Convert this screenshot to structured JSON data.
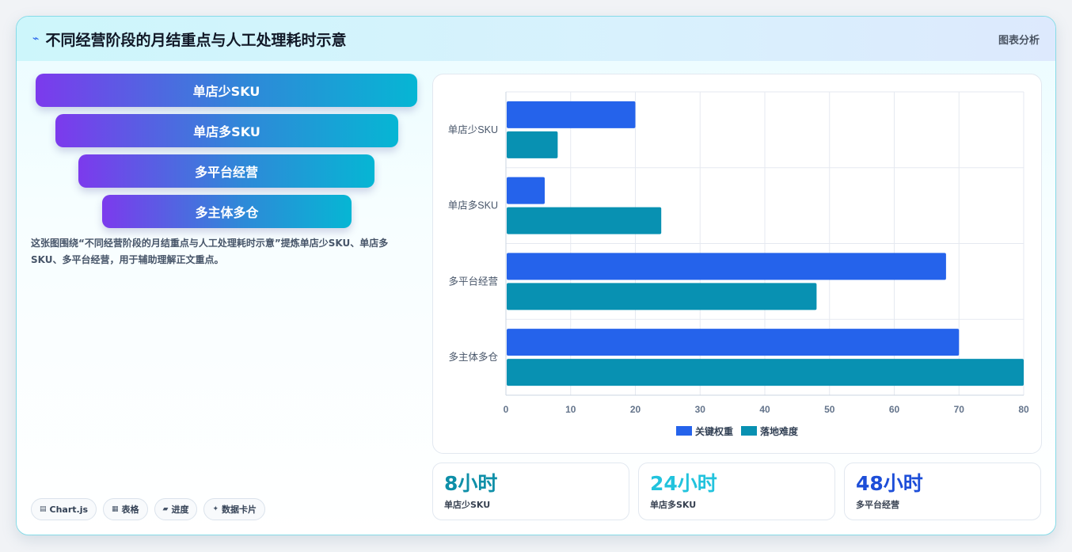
{
  "header": {
    "icon": "chart-line-icon",
    "title": "不同经营阶段的月结重点与人工处理耗时示意",
    "tag": "图表分析"
  },
  "funnel": {
    "steps": [
      {
        "label": "单店少SKU"
      },
      {
        "label": "单店多SKU"
      },
      {
        "label": "多平台经营"
      },
      {
        "label": "多主体多仓"
      }
    ]
  },
  "description": "这张图围绕“不同经营阶段的月结重点与人工处理耗时示意”提炼单店少SKU、单店多SKU、多平台经营，用于辅助理解正文重点。",
  "tags": [
    {
      "icon": "table-icon",
      "label": "Chart.js"
    },
    {
      "icon": "grid-icon",
      "label": "表格"
    },
    {
      "icon": "progress-icon",
      "label": "进度"
    },
    {
      "icon": "sparkle-icon",
      "label": "数据卡片"
    }
  ],
  "chart_data": {
    "type": "bar",
    "orientation": "horizontal",
    "categories": [
      "单店少SKU",
      "单店多SKU",
      "多平台经营",
      "多主体多仓"
    ],
    "series": [
      {
        "name": "关键权重",
        "color": "#2563eb",
        "values": [
          20,
          6,
          68,
          70
        ]
      },
      {
        "name": "落地难度",
        "color": "#0891b2",
        "values": [
          8,
          24,
          48,
          80
        ]
      }
    ],
    "xlim": [
      0,
      80
    ],
    "xticks": [
      0,
      10,
      20,
      30,
      40,
      50,
      60,
      70,
      80
    ],
    "grid": true,
    "legend": "bottom"
  },
  "stats": [
    {
      "value": "8小时",
      "label": "单店少SKU",
      "color": "#0e8fa8"
    },
    {
      "value": "24小时",
      "label": "单店多SKU",
      "color": "#22c3dd"
    },
    {
      "value": "48小时",
      "label": "多平台经营",
      "color": "#1d4ed8"
    }
  ]
}
